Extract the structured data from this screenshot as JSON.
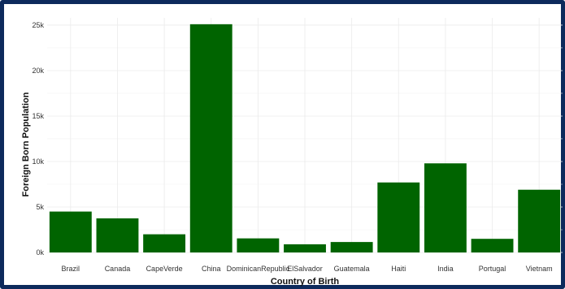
{
  "chart_data": {
    "type": "bar",
    "title": "",
    "xlabel": "Country of Birth",
    "ylabel": "Foreign Born Population",
    "categories": [
      "Brazil",
      "Canada",
      "CapeVerde",
      "China",
      "DominicanRepublic",
      "ElSalvador",
      "Guatemala",
      "Haiti",
      "India",
      "Portugal",
      "Vietnam"
    ],
    "values": [
      4500,
      3750,
      2000,
      25100,
      1550,
      900,
      1150,
      7700,
      9800,
      1500,
      6900
    ],
    "ylim": [
      0,
      25800
    ],
    "yticks": [
      0,
      5000,
      10000,
      15000,
      20000,
      25000
    ],
    "ytick_labels": [
      "0k",
      "5k",
      "10k",
      "15k",
      "20k",
      "25k"
    ],
    "bar_color": "#006400",
    "grid": true,
    "legend": "none"
  }
}
